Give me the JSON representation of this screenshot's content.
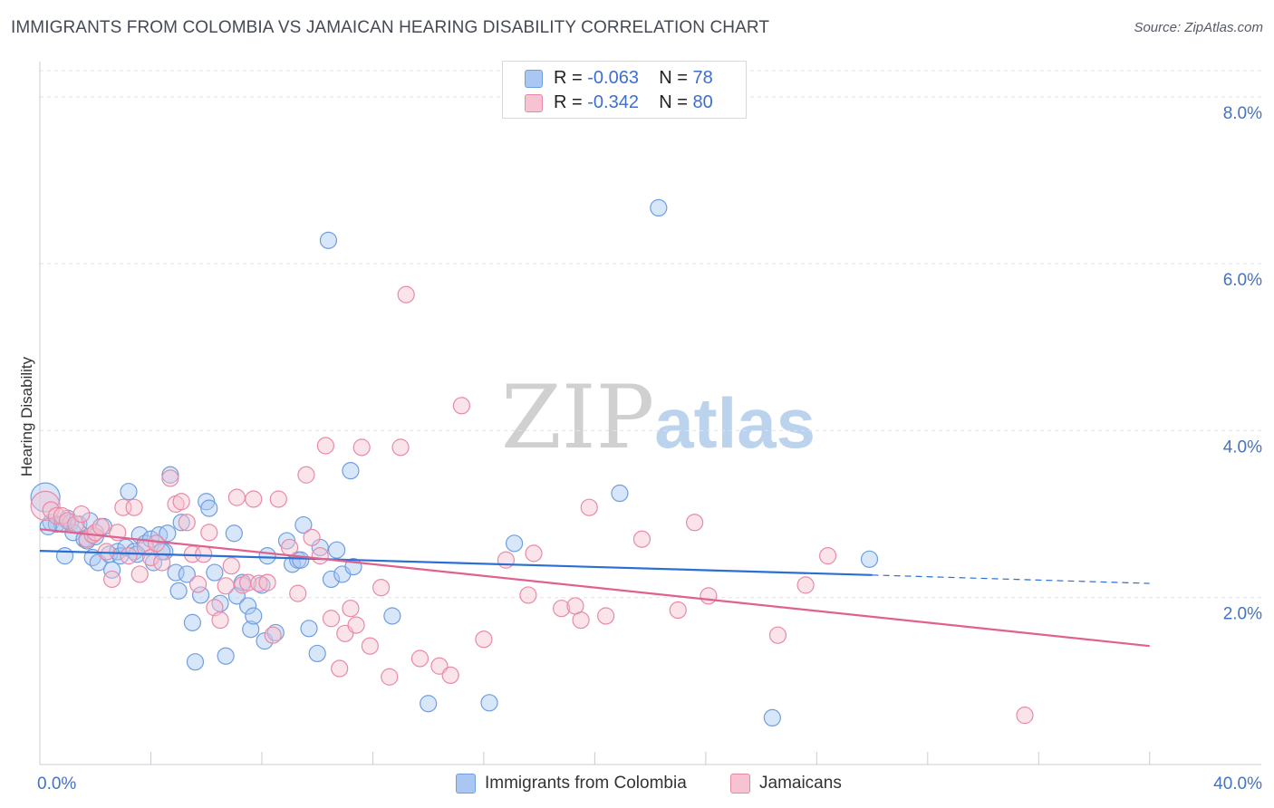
{
  "title": "IMMIGRANTS FROM COLOMBIA VS JAMAICAN HEARING DISABILITY CORRELATION CHART",
  "source": "Source: ZipAtlas.com",
  "watermark": {
    "zip": "ZIP",
    "atlas": "atlas"
  },
  "stats": [
    {
      "r_label": "R =",
      "r_value": "-0.063",
      "n_label": "N =",
      "n_value": "78",
      "color": "#a9c7f2",
      "border": "#6f9ee0"
    },
    {
      "r_label": "R =",
      "r_value": "-0.342",
      "n_label": "N =",
      "n_value": "80",
      "color": "#f7c2d1",
      "border": "#e88aa6"
    }
  ],
  "legend": [
    {
      "label": "Immigrants from Colombia",
      "color": "#a9c7f2",
      "border": "#6f9ee0"
    },
    {
      "label": "Jamaicans",
      "color": "#f7c2d1",
      "border": "#e88aa6"
    }
  ],
  "chart_data": {
    "type": "scatter",
    "title": "IMMIGRANTS FROM COLOMBIA VS JAMAICAN HEARING DISABILITY CORRELATION CHART",
    "ylabel": "Hearing Disability",
    "xlabel": "",
    "xlim": [
      0,
      42
    ],
    "ylim": [
      0,
      8.4
    ],
    "x_tick_labels": [
      {
        "value": 0,
        "label": "0.0%"
      },
      {
        "value": 40,
        "label": "40.0%"
      }
    ],
    "y_tick_labels": [
      {
        "value": 2,
        "label": "2.0%"
      },
      {
        "value": 4,
        "label": "4.0%"
      },
      {
        "value": 6,
        "label": "6.0%"
      },
      {
        "value": 8,
        "label": "8.0%"
      }
    ],
    "grid": true,
    "legend_position": "bottom",
    "series": [
      {
        "name": "Immigrants from Colombia",
        "color": "#a9c7f2",
        "stroke": "#6f9ee0",
        "trend": {
          "x0": 0,
          "y0": 2.56,
          "x1": 30,
          "y1": 2.27,
          "dash_to_x": 40,
          "dash_to_y": 2.17,
          "color": "#2b6fd3"
        },
        "points": [
          [
            0.2,
            3.2
          ],
          [
            0.4,
            2.9
          ],
          [
            0.6,
            2.88
          ],
          [
            0.8,
            2.88
          ],
          [
            0.9,
            2.5
          ],
          [
            1.0,
            2.95
          ],
          [
            1.1,
            2.9
          ],
          [
            1.2,
            2.78
          ],
          [
            1.4,
            2.88
          ],
          [
            1.6,
            2.7
          ],
          [
            1.7,
            2.68
          ],
          [
            1.8,
            2.92
          ],
          [
            1.9,
            2.48
          ],
          [
            2.1,
            2.42
          ],
          [
            2.3,
            2.85
          ],
          [
            2.5,
            2.52
          ],
          [
            2.6,
            2.33
          ],
          [
            2.8,
            2.55
          ],
          [
            2.9,
            2.5
          ],
          [
            3.1,
            2.6
          ],
          [
            3.2,
            3.27
          ],
          [
            3.4,
            2.55
          ],
          [
            3.6,
            2.75
          ],
          [
            3.8,
            2.65
          ],
          [
            4.0,
            2.7
          ],
          [
            4.1,
            2.42
          ],
          [
            4.3,
            2.75
          ],
          [
            4.5,
            2.55
          ],
          [
            4.6,
            2.77
          ],
          [
            4.7,
            3.47
          ],
          [
            4.9,
            2.3
          ],
          [
            5.0,
            2.08
          ],
          [
            5.1,
            2.9
          ],
          [
            5.3,
            2.28
          ],
          [
            5.5,
            1.7
          ],
          [
            5.6,
            1.23
          ],
          [
            5.8,
            2.03
          ],
          [
            6.0,
            3.15
          ],
          [
            6.1,
            3.07
          ],
          [
            6.3,
            2.3
          ],
          [
            6.5,
            1.93
          ],
          [
            6.7,
            1.3
          ],
          [
            7.0,
            2.77
          ],
          [
            7.1,
            2.02
          ],
          [
            7.3,
            2.18
          ],
          [
            7.5,
            1.9
          ],
          [
            7.6,
            1.62
          ],
          [
            7.7,
            1.78
          ],
          [
            8.0,
            2.15
          ],
          [
            8.1,
            1.48
          ],
          [
            8.2,
            2.5
          ],
          [
            8.5,
            1.58
          ],
          [
            8.9,
            2.68
          ],
          [
            9.1,
            2.4
          ],
          [
            9.3,
            2.45
          ],
          [
            9.4,
            2.45
          ],
          [
            9.5,
            2.87
          ],
          [
            9.7,
            1.63
          ],
          [
            10.0,
            1.33
          ],
          [
            10.1,
            2.6
          ],
          [
            10.4,
            6.28
          ],
          [
            10.5,
            2.22
          ],
          [
            10.7,
            2.57
          ],
          [
            10.9,
            2.28
          ],
          [
            11.2,
            3.52
          ],
          [
            11.3,
            2.37
          ],
          [
            12.7,
            1.78
          ],
          [
            14.0,
            0.73
          ],
          [
            16.2,
            0.74
          ],
          [
            17.1,
            2.65
          ],
          [
            20.9,
            3.25
          ],
          [
            22.3,
            6.67
          ],
          [
            26.4,
            0.56
          ],
          [
            29.9,
            2.46
          ],
          [
            0.3,
            2.85
          ],
          [
            2.0,
            2.73
          ],
          [
            3.5,
            2.52
          ],
          [
            4.4,
            2.55
          ]
        ]
      },
      {
        "name": "Jamaicans",
        "color": "#f7c2d1",
        "stroke": "#e88aa6",
        "trend": {
          "x0": 0,
          "y0": 2.82,
          "x1": 40,
          "y1": 1.42,
          "color": "#e0618e"
        },
        "points": [
          [
            0.2,
            3.1
          ],
          [
            0.4,
            3.05
          ],
          [
            0.6,
            2.98
          ],
          [
            0.8,
            2.98
          ],
          [
            1.0,
            2.92
          ],
          [
            1.3,
            2.88
          ],
          [
            1.5,
            3.0
          ],
          [
            1.7,
            2.7
          ],
          [
            1.9,
            2.75
          ],
          [
            2.0,
            2.78
          ],
          [
            2.2,
            2.85
          ],
          [
            2.4,
            2.55
          ],
          [
            2.6,
            2.22
          ],
          [
            2.8,
            2.78
          ],
          [
            3.0,
            3.08
          ],
          [
            3.2,
            2.5
          ],
          [
            3.4,
            3.08
          ],
          [
            3.6,
            2.28
          ],
          [
            3.8,
            2.6
          ],
          [
            4.0,
            2.48
          ],
          [
            4.2,
            2.65
          ],
          [
            4.4,
            2.42
          ],
          [
            4.7,
            3.43
          ],
          [
            4.9,
            3.12
          ],
          [
            5.1,
            3.15
          ],
          [
            5.3,
            2.9
          ],
          [
            5.5,
            2.52
          ],
          [
            5.7,
            2.16
          ],
          [
            5.9,
            2.52
          ],
          [
            6.1,
            2.78
          ],
          [
            6.3,
            1.88
          ],
          [
            6.5,
            1.73
          ],
          [
            6.7,
            2.14
          ],
          [
            6.9,
            2.38
          ],
          [
            7.1,
            3.2
          ],
          [
            7.3,
            2.15
          ],
          [
            7.5,
            2.18
          ],
          [
            7.7,
            3.18
          ],
          [
            7.9,
            2.17
          ],
          [
            8.2,
            2.18
          ],
          [
            8.4,
            1.55
          ],
          [
            8.6,
            3.18
          ],
          [
            9.0,
            2.6
          ],
          [
            9.3,
            2.05
          ],
          [
            9.6,
            3.47
          ],
          [
            9.8,
            2.72
          ],
          [
            10.1,
            2.5
          ],
          [
            10.3,
            3.82
          ],
          [
            10.5,
            1.75
          ],
          [
            10.8,
            1.15
          ],
          [
            11.0,
            1.57
          ],
          [
            11.2,
            1.87
          ],
          [
            11.4,
            1.67
          ],
          [
            11.6,
            3.8
          ],
          [
            11.9,
            1.42
          ],
          [
            12.3,
            2.12
          ],
          [
            12.6,
            1.05
          ],
          [
            13.0,
            3.8
          ],
          [
            13.2,
            5.63
          ],
          [
            13.7,
            1.27
          ],
          [
            14.4,
            1.18
          ],
          [
            14.8,
            1.07
          ],
          [
            15.2,
            4.3
          ],
          [
            16.0,
            1.5
          ],
          [
            16.8,
            2.45
          ],
          [
            17.6,
            2.03
          ],
          [
            17.8,
            2.53
          ],
          [
            18.8,
            1.87
          ],
          [
            19.5,
            1.73
          ],
          [
            19.8,
            3.08
          ],
          [
            20.4,
            1.78
          ],
          [
            21.7,
            2.7
          ],
          [
            23.0,
            1.85
          ],
          [
            23.6,
            2.9
          ],
          [
            24.1,
            2.02
          ],
          [
            26.6,
            1.55
          ],
          [
            27.6,
            2.15
          ],
          [
            28.4,
            2.5
          ],
          [
            35.5,
            0.59
          ],
          [
            19.3,
            1.9
          ]
        ]
      }
    ]
  }
}
